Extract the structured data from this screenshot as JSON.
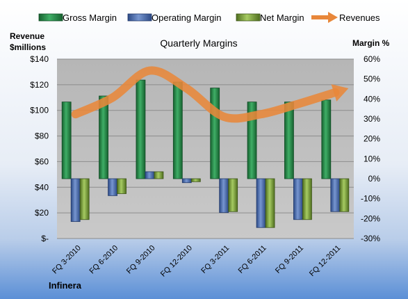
{
  "chart_data": {
    "type": "bar",
    "title": "Quarterly Margins",
    "footer": "Infinera",
    "left_axis": {
      "label_line1": "Revenue",
      "label_line2": "$millions",
      "ylim": [
        0,
        140
      ],
      "ticks": [
        0,
        20,
        40,
        60,
        80,
        100,
        120,
        140
      ],
      "tick_labels": [
        "$-",
        "$20",
        "$40",
        "$60",
        "$80",
        "$100",
        "$120",
        "$140"
      ]
    },
    "right_axis": {
      "label": "Margin %",
      "ylim": [
        -30,
        60
      ],
      "ticks": [
        -30,
        -20,
        -10,
        0,
        10,
        20,
        30,
        40,
        50,
        60
      ],
      "tick_labels": [
        "-30%",
        "-20%",
        "-10%",
        "0%",
        "10%",
        "20%",
        "30%",
        "40%",
        "50%",
        "60%"
      ]
    },
    "categories": [
      "FQ 3-2010",
      "FQ 6-2010",
      "FQ 9-2010",
      "FQ 12-2010",
      "FQ 3-2011",
      "FQ 6-2011",
      "FQ 9-2011",
      "FQ 12-2011"
    ],
    "series": [
      {
        "name": "Gross Margin",
        "axis": "right",
        "color": "#2e8b57",
        "values": [
          38.5,
          41.5,
          49.5,
          48.5,
          45.5,
          38.5,
          38.5,
          39.5
        ]
      },
      {
        "name": "Operating Margin",
        "axis": "right",
        "color": "#4a6fb0",
        "values": [
          -21.5,
          -8.5,
          3.5,
          -2.0,
          -17.0,
          -24.5,
          -20.5,
          -16.5
        ]
      },
      {
        "name": "Net Margin",
        "axis": "right",
        "color": "#7fa63c",
        "values": [
          -20.5,
          -7.5,
          3.5,
          -1.5,
          -16.5,
          -24.5,
          -20.5,
          -16.5
        ]
      },
      {
        "name": "Revenues",
        "axis": "left",
        "color": "#e8873a",
        "type": "line",
        "values": [
          97,
          110,
          131,
          117,
          95,
          97,
          105,
          114
        ]
      }
    ],
    "legend_position": "top",
    "grid": true
  }
}
